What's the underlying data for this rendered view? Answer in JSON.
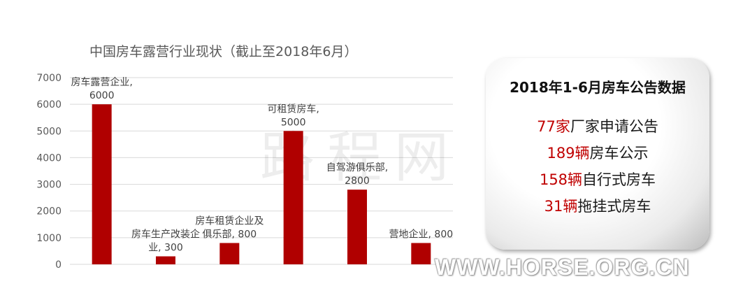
{
  "chart_data": {
    "type": "bar",
    "title": "中国房车露营行业现状（截止至2018年6月）",
    "categories": [
      "房车露营企业",
      "房车生产改装企业",
      "房车租赁企业及俱乐部",
      "可租赁房车",
      "自驾游俱乐部",
      "营地企业"
    ],
    "values": [
      6000,
      300,
      800,
      5000,
      2800,
      800
    ],
    "data_labels": [
      [
        "房车露营企业,",
        "6000"
      ],
      [
        "房车生产改装企",
        "业, 300"
      ],
      [
        "房车租赁企业及",
        "俱乐部, 800"
      ],
      [
        "可租赁房车,",
        "5000"
      ],
      [
        "自驾游俱乐部,",
        "2800"
      ],
      [
        "营地企业, 800"
      ]
    ],
    "y_ticks": [
      0,
      1000,
      2000,
      3000,
      4000,
      5000,
      6000,
      7000
    ],
    "ylim": [
      0,
      7000
    ],
    "grid": true,
    "bar_color": "#b00000"
  },
  "watermark_text": "路程网",
  "panel": {
    "title": "2018年1-6月房车公告数据",
    "stats": [
      {
        "num": "77家",
        "desc": "厂家申请公告"
      },
      {
        "num": "189辆",
        "desc": "房车公示"
      },
      {
        "num": "158辆",
        "desc": "自行式房车"
      },
      {
        "num": "31辆",
        "desc": "拖挂式房车"
      }
    ]
  },
  "site_watermark": "WWW.HORSE.ORG.CN"
}
